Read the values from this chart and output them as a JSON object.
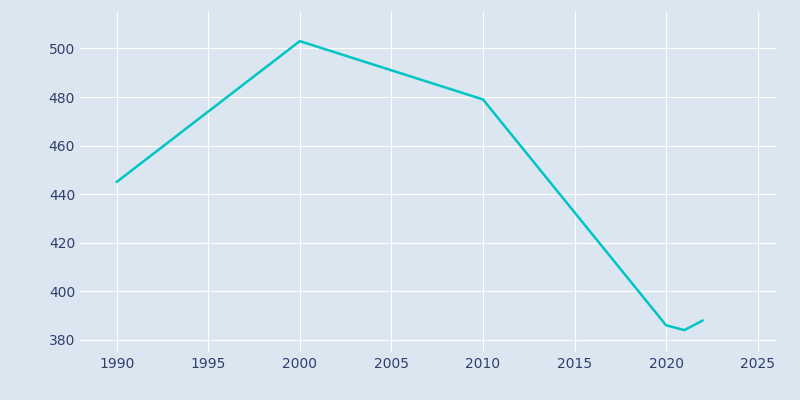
{
  "years": [
    1990,
    2000,
    2010,
    2020,
    2021,
    2022
  ],
  "population": [
    445,
    503,
    479,
    386,
    384,
    388
  ],
  "line_color": "#00C5C5",
  "background_color": "#dce6f0",
  "grid_color": "#ffffff",
  "text_color": "#2e3f6e",
  "xlim": [
    1988,
    2026
  ],
  "ylim": [
    375,
    515
  ],
  "xticks": [
    1990,
    1995,
    2000,
    2005,
    2010,
    2015,
    2020,
    2025
  ],
  "yticks": [
    380,
    400,
    420,
    440,
    460,
    480,
    500
  ],
  "linewidth": 1.8
}
